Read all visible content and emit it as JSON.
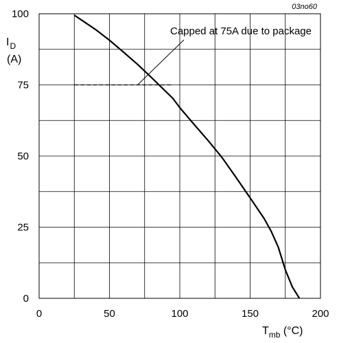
{
  "figure_code": "03no60",
  "chart_data": {
    "type": "line",
    "xlim": [
      0,
      200
    ],
    "ylim": [
      0,
      100
    ],
    "x_ticks": [
      0,
      50,
      100,
      150,
      200
    ],
    "y_ticks": [
      0,
      25,
      50,
      75,
      100
    ],
    "x_tick_labels": [
      "0",
      "50",
      "100",
      "150",
      "200"
    ],
    "y_tick_labels": [
      "0",
      "25",
      "50",
      "75",
      "100"
    ],
    "x_grid_step": 25,
    "y_grid_step": 12.5,
    "grid": true,
    "xlabel": {
      "main": "T",
      "sub": "mb",
      "unit": " (°C)"
    },
    "ylabel": {
      "main": "I",
      "sub": "D",
      "unit": "(A)"
    },
    "series": [
      {
        "style": "solid",
        "color": "#000000",
        "x": [
          25,
          40,
          50,
          60,
          70,
          80,
          90,
          95,
          100,
          110,
          120,
          130,
          140,
          150,
          160,
          165,
          170,
          175,
          180,
          185
        ],
        "y": [
          99.5,
          94.5,
          90.7,
          86.5,
          82.2,
          77.5,
          72.7,
          70.3,
          67,
          61.2,
          55.5,
          49.5,
          42.5,
          35.3,
          28,
          23.5,
          18,
          10,
          4,
          0
        ]
      },
      {
        "style": "dashed",
        "color": "#000000",
        "x": [
          25,
          95
        ],
        "y": [
          75,
          75
        ]
      }
    ],
    "annotations": [
      {
        "text": "Capped at 75A due to package",
        "points_to": {
          "x": 70,
          "y": 75
        }
      }
    ]
  }
}
